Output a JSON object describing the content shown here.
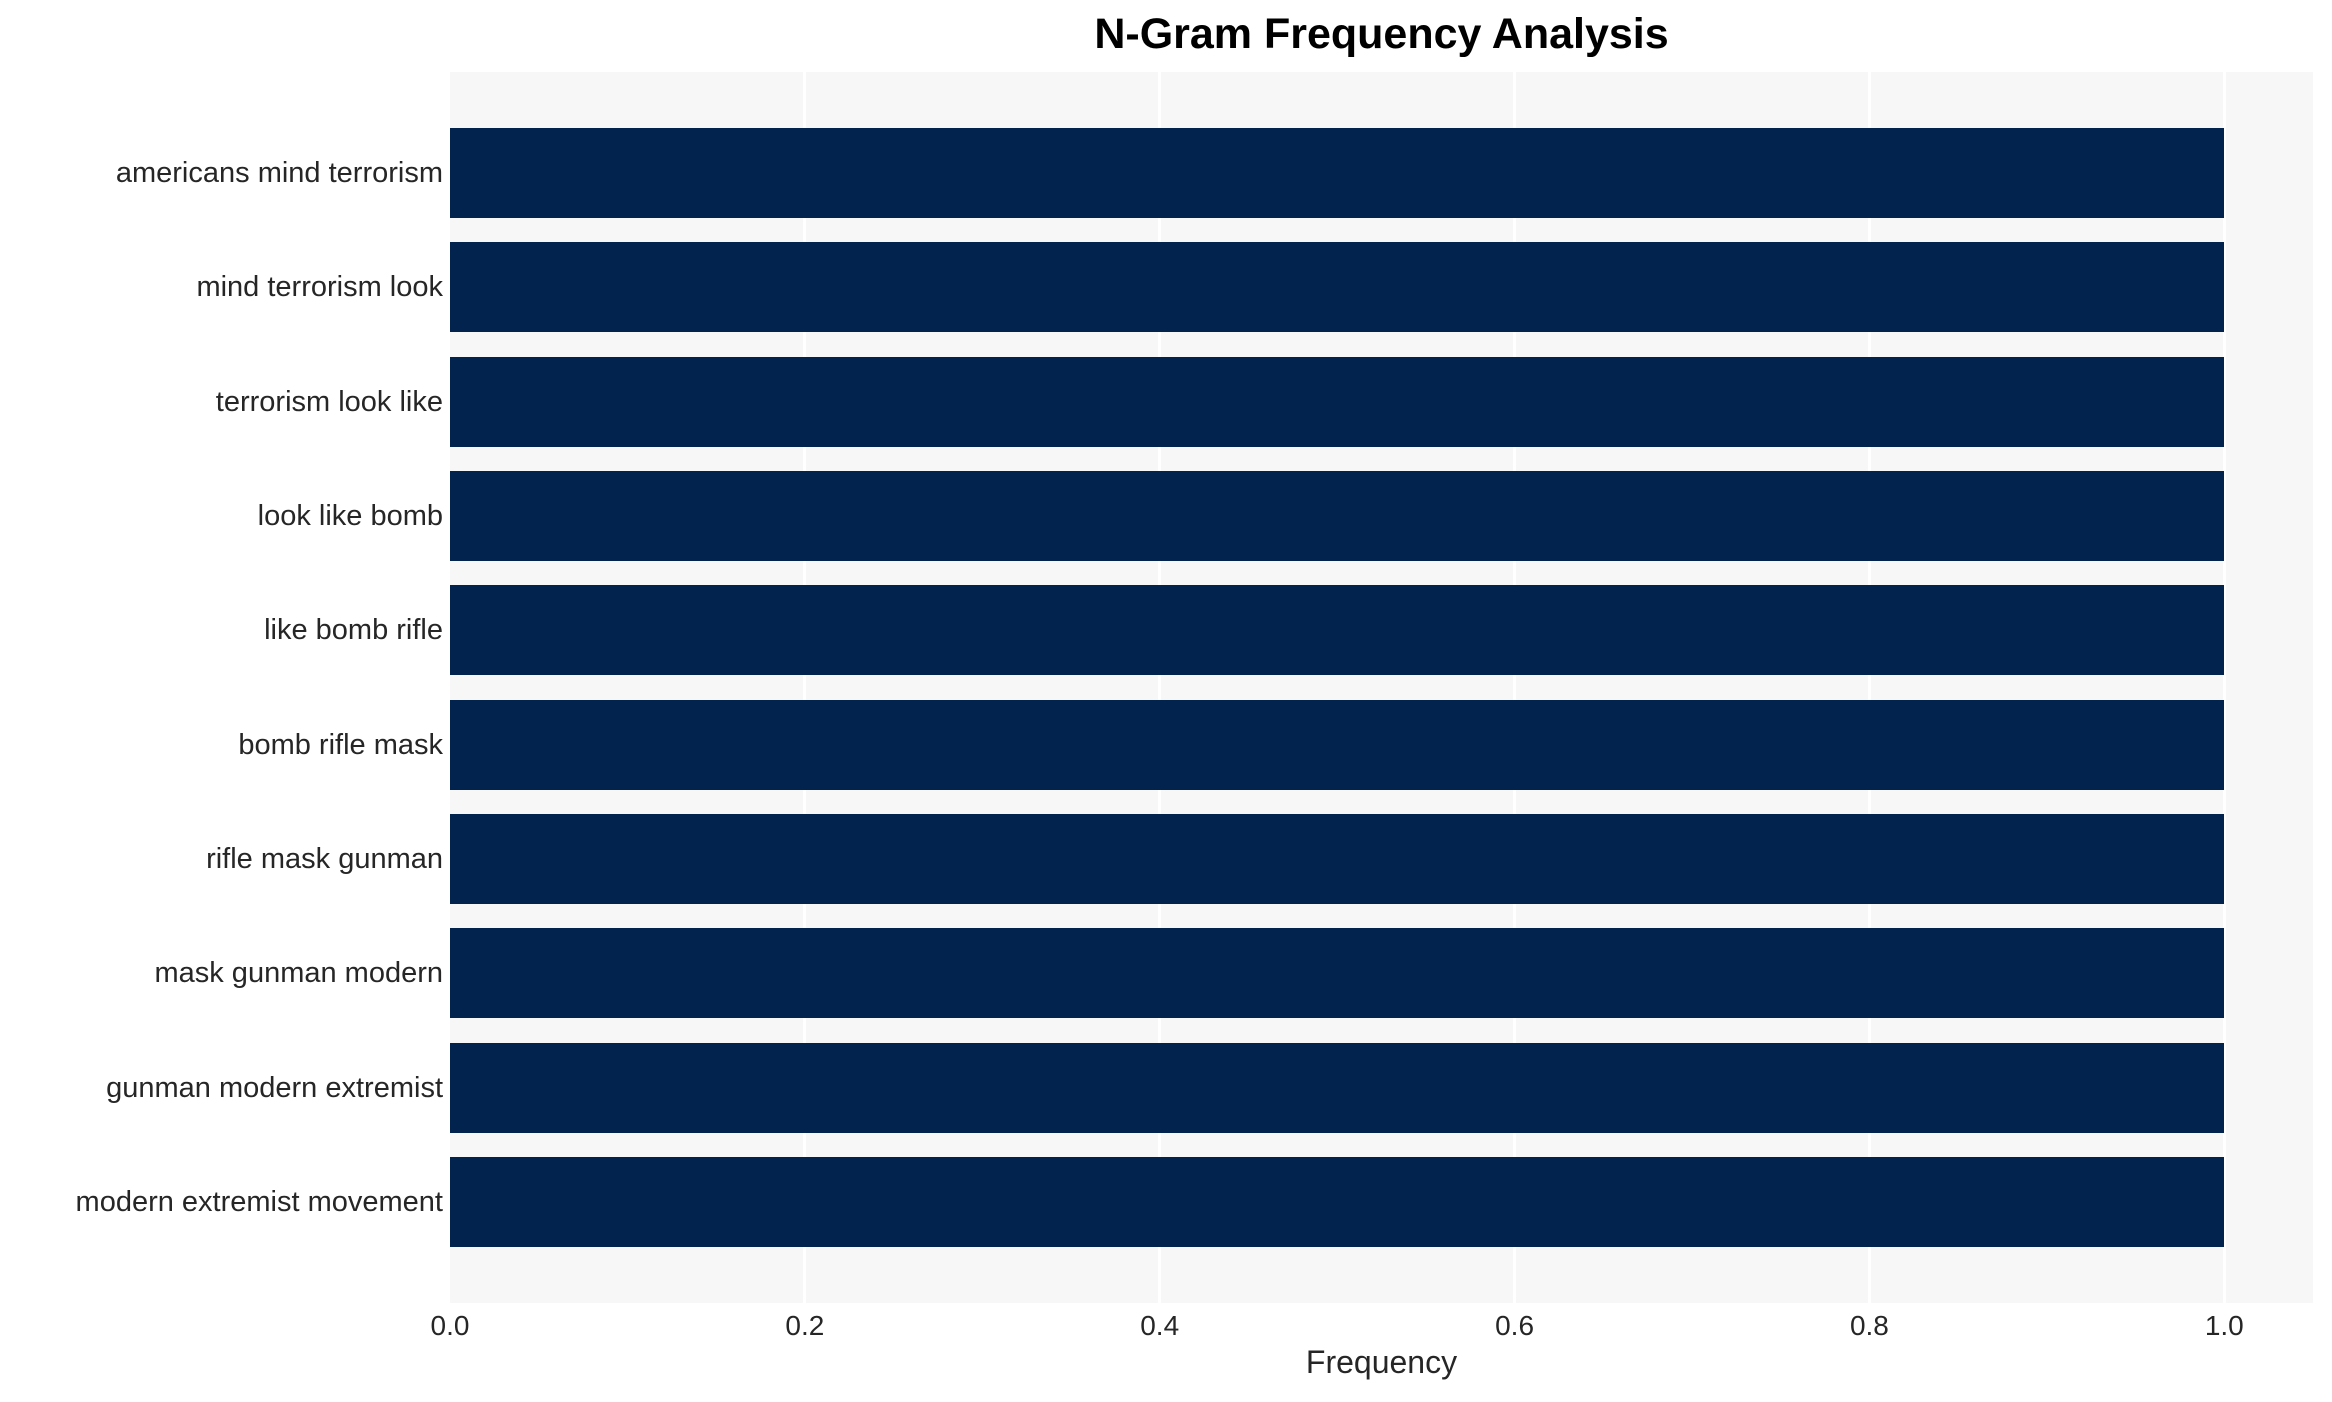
{
  "figure": {
    "title": "N-Gram Frequency Analysis",
    "xlabel": "Frequency"
  },
  "colors": {
    "bar": "#02234d",
    "plot_background": "#f7f7f7",
    "gridline": "#ffffff",
    "figure_background": "#ffffff",
    "title_text": "#000000",
    "axis_text": "#262626"
  },
  "chart_data": {
    "type": "bar",
    "orientation": "horizontal",
    "title": "N-Gram Frequency Analysis",
    "xlabel": "Frequency",
    "ylabel": "",
    "categories": [
      "americans mind terrorism",
      "mind terrorism look",
      "terrorism look like",
      "look like bomb",
      "like bomb rifle",
      "bomb rifle mask",
      "rifle mask gunman",
      "mask gunman modern",
      "gunman modern extremist",
      "modern extremist movement"
    ],
    "values": [
      1.0,
      1.0,
      1.0,
      1.0,
      1.0,
      1.0,
      1.0,
      1.0,
      1.0,
      1.0
    ],
    "xlim": [
      0,
      1.05
    ],
    "xtick_labels": [
      "0.0",
      "0.2",
      "0.4",
      "0.6",
      "0.8",
      "1.0"
    ],
    "xtick_values": [
      0.0,
      0.2,
      0.4,
      0.6,
      0.8,
      1.0
    ],
    "grid": true,
    "legend": false
  }
}
